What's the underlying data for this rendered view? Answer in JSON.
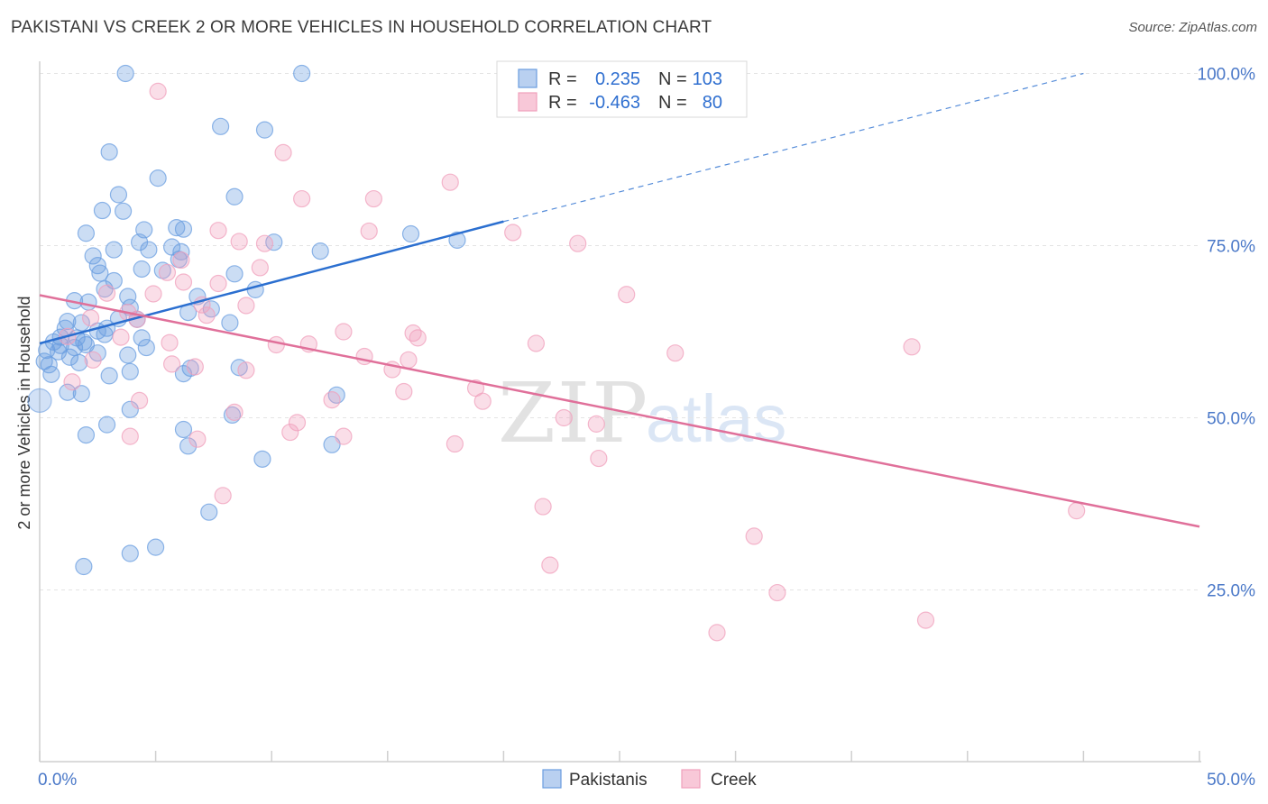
{
  "title": "PAKISTANI VS CREEK 2 OR MORE VEHICLES IN HOUSEHOLD CORRELATION CHART",
  "source": "Source: ZipAtlas.com",
  "watermark": {
    "part1": "ZIP",
    "part2": "atlas"
  },
  "colors": {
    "blue": "#6a9de0",
    "blue_line": "#2b6fd0",
    "pink": "#f0a0bc",
    "pink_line": "#e0709a"
  },
  "legend": {
    "r_label": "R =",
    "n_label": "N =",
    "rows": [
      {
        "r": "0.235",
        "n": "103"
      },
      {
        "r": "-0.463",
        "n": "80"
      }
    ]
  },
  "chart_data": {
    "type": "scatter",
    "title": "PAKISTANI VS CREEK 2 OR MORE VEHICLES IN HOUSEHOLD CORRELATION CHART",
    "xlabel": "",
    "ylabel": "2 or more Vehicles in Household",
    "xlim": [
      0,
      50
    ],
    "ylim": [
      0,
      102
    ],
    "x_tick_labels": [
      "0.0%",
      "50.0%"
    ],
    "y_ticks": [
      25,
      50,
      75,
      100
    ],
    "y_tick_labels": [
      "25.0%",
      "50.0%",
      "75.0%",
      "100.0%"
    ],
    "series": [
      {
        "name": "Pakistanis",
        "r": 0.235,
        "n": 103,
        "trend": {
          "x0": 0,
          "y0": 60.8,
          "x1": 20,
          "y1": 78.5,
          "dashed_to_x": 45,
          "dashed_to_y": 100
        },
        "points": [
          [
            3.7,
            100
          ],
          [
            11.3,
            100
          ],
          [
            7.8,
            92.3
          ],
          [
            9.7,
            91.8
          ],
          [
            3,
            88.6
          ],
          [
            5.1,
            84.8
          ],
          [
            3.4,
            82.4
          ],
          [
            8.4,
            82.1
          ],
          [
            2.7,
            80.1
          ],
          [
            3.6,
            80
          ],
          [
            4.5,
            77.3
          ],
          [
            5.9,
            77.6
          ],
          [
            6.2,
            77.4
          ],
          [
            2,
            76.8
          ],
          [
            4.3,
            75.5
          ],
          [
            10.1,
            75.5
          ],
          [
            16,
            76.7
          ],
          [
            18,
            75.8
          ],
          [
            3.2,
            74.4
          ],
          [
            4.7,
            74.4
          ],
          [
            5.7,
            74.8
          ],
          [
            6.1,
            74.1
          ],
          [
            12.1,
            74.2
          ],
          [
            2.3,
            73.5
          ],
          [
            6,
            73
          ],
          [
            2.5,
            72.1
          ],
          [
            4.4,
            71.6
          ],
          [
            5.3,
            71.4
          ],
          [
            2.6,
            71
          ],
          [
            8.4,
            70.9
          ],
          [
            3.2,
            69.9
          ],
          [
            2.8,
            68.7
          ],
          [
            9.3,
            68.6
          ],
          [
            6.8,
            67.6
          ],
          [
            3.8,
            67.6
          ],
          [
            1.5,
            67
          ],
          [
            2.1,
            66.8
          ],
          [
            3.9,
            66
          ],
          [
            7.4,
            65.8
          ],
          [
            6.4,
            65.3
          ],
          [
            3.4,
            64.4
          ],
          [
            4.2,
            64.3
          ],
          [
            1.2,
            64
          ],
          [
            1.8,
            63.8
          ],
          [
            1.1,
            63
          ],
          [
            2.9,
            63
          ],
          [
            8.2,
            63.8
          ],
          [
            2.5,
            62.6
          ],
          [
            2.8,
            62.1
          ],
          [
            0.9,
            61.7
          ],
          [
            1.6,
            61.6
          ],
          [
            4.4,
            61.6
          ],
          [
            1.9,
            61
          ],
          [
            0.6,
            61
          ],
          [
            0.9,
            60.5
          ],
          [
            2,
            60.6
          ],
          [
            4.6,
            60.2
          ],
          [
            1.5,
            60.2
          ],
          [
            0.3,
            59.8
          ],
          [
            2.5,
            59.4
          ],
          [
            3.8,
            59.1
          ],
          [
            0.8,
            59.6
          ],
          [
            1.3,
            58.8
          ],
          [
            0.2,
            58.2
          ],
          [
            1.7,
            58
          ],
          [
            0.4,
            57.7
          ],
          [
            6.5,
            57.2
          ],
          [
            8.6,
            57.3
          ],
          [
            0.5,
            56.3
          ],
          [
            3,
            56.1
          ],
          [
            3.9,
            56.7
          ],
          [
            6.2,
            56.4
          ],
          [
            1.2,
            53.7
          ],
          [
            1.8,
            53.5
          ],
          [
            12.8,
            53.3
          ],
          [
            3.9,
            51.2
          ],
          [
            8.3,
            50.4
          ],
          [
            2.9,
            49
          ],
          [
            6.2,
            48.3
          ],
          [
            2,
            47.5
          ],
          [
            6.4,
            45.9
          ],
          [
            12.6,
            46.1
          ],
          [
            9.6,
            44
          ],
          [
            7.3,
            36.3
          ],
          [
            5,
            31.2
          ],
          [
            3.9,
            30.3
          ],
          [
            1.9,
            28.4
          ]
        ]
      },
      {
        "name": "Creek",
        "r": -0.463,
        "n": 80,
        "trend": {
          "x0": 0,
          "y0": 67.8,
          "x1": 50,
          "y1": 34.2
        },
        "points": [
          [
            5.1,
            97.4
          ],
          [
            10.5,
            88.5
          ],
          [
            17.7,
            84.2
          ],
          [
            11.3,
            81.8
          ],
          [
            14.4,
            81.8
          ],
          [
            7.7,
            77.2
          ],
          [
            14.2,
            77.1
          ],
          [
            20.4,
            76.9
          ],
          [
            8.6,
            75.6
          ],
          [
            9.7,
            75.3
          ],
          [
            23.2,
            75.3
          ],
          [
            6.1,
            72.9
          ],
          [
            9.5,
            71.8
          ],
          [
            7.7,
            69.5
          ],
          [
            5.5,
            71.1
          ],
          [
            6.2,
            69.7
          ],
          [
            2.9,
            68.1
          ],
          [
            4.9,
            68
          ],
          [
            25.3,
            67.9
          ],
          [
            7,
            66.4
          ],
          [
            8.9,
            66.3
          ],
          [
            3.8,
            65.3
          ],
          [
            7.2,
            64.9
          ],
          [
            2.2,
            64.5
          ],
          [
            4.2,
            64.3
          ],
          [
            13.1,
            62.5
          ],
          [
            16.1,
            62.3
          ],
          [
            1.2,
            61.8
          ],
          [
            3.5,
            61.7
          ],
          [
            5.6,
            60.9
          ],
          [
            16.3,
            61.6
          ],
          [
            10.2,
            60.6
          ],
          [
            11.6,
            60.7
          ],
          [
            21.4,
            60.8
          ],
          [
            37.6,
            60.3
          ],
          [
            27.4,
            59.4
          ],
          [
            14,
            58.9
          ],
          [
            2.3,
            58.4
          ],
          [
            5.7,
            57.8
          ],
          [
            6.7,
            57.4
          ],
          [
            8.9,
            56.9
          ],
          [
            15.2,
            57
          ],
          [
            15.9,
            58.4
          ],
          [
            1.4,
            55.2
          ],
          [
            18.8,
            54.3
          ],
          [
            19.1,
            52.4
          ],
          [
            15.7,
            53.8
          ],
          [
            4.3,
            52.5
          ],
          [
            12.6,
            52.6
          ],
          [
            8.4,
            50.8
          ],
          [
            22.6,
            50
          ],
          [
            11.1,
            49.3
          ],
          [
            24,
            49.1
          ],
          [
            10.8,
            47.9
          ],
          [
            3.9,
            47.3
          ],
          [
            13.1,
            47.3
          ],
          [
            6.8,
            46.9
          ],
          [
            17.9,
            46.2
          ],
          [
            24.1,
            44.1
          ],
          [
            7.9,
            38.7
          ],
          [
            21.7,
            37.1
          ],
          [
            44.7,
            36.5
          ],
          [
            30.8,
            32.8
          ],
          [
            22,
            28.6
          ],
          [
            31.8,
            24.6
          ],
          [
            38.2,
            20.6
          ],
          [
            29.2,
            18.8
          ]
        ]
      }
    ]
  },
  "bottom_legend": [
    "Pakistanis",
    "Creek"
  ]
}
